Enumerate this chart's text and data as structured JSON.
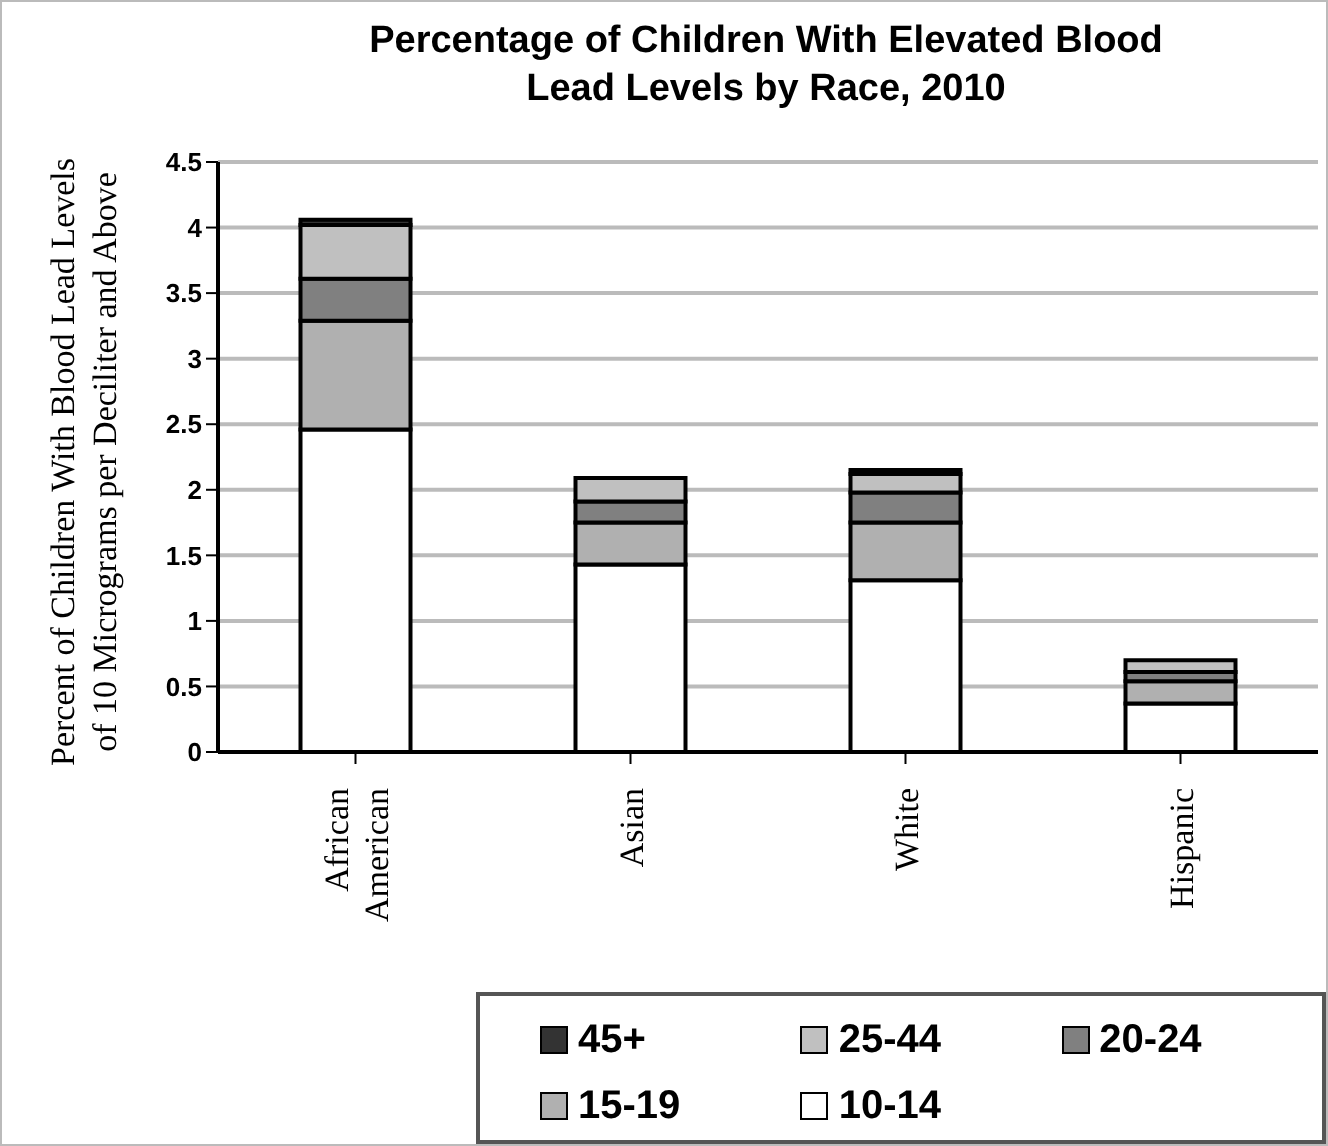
{
  "chart_data": {
    "type": "bar",
    "title": "Percentage of Children With Elevated Blood\nLead Levels by Race, 2010",
    "ylabel": "Percent of Children With Blood Lead Levels\nof 10 Micrograms per Deciliter and Above",
    "categories": [
      "African American",
      "Asian",
      "White",
      "Hispanic"
    ],
    "stacked": true,
    "series": [
      {
        "name": "10-14",
        "color": "#ffffff",
        "values": [
          2.46,
          1.43,
          1.31,
          0.37
        ]
      },
      {
        "name": "15-19",
        "color": "#b0b0b0",
        "values": [
          0.83,
          0.32,
          0.44,
          0.17
        ]
      },
      {
        "name": "20-24",
        "color": "#808080",
        "values": [
          0.32,
          0.16,
          0.23,
          0.07
        ]
      },
      {
        "name": "25-44",
        "color": "#c0c0c0",
        "values": [
          0.41,
          0.18,
          0.14,
          0.09
        ]
      },
      {
        "name": "45+",
        "color": "#333333",
        "values": [
          0.04,
          0,
          0.03,
          0
        ]
      }
    ],
    "ylim": [
      0,
      4.5
    ],
    "yticks": [
      0,
      0.5,
      1,
      1.5,
      2,
      2.5,
      3,
      3.5,
      4,
      4.5
    ],
    "grid": "y",
    "legend": "bottom right"
  }
}
